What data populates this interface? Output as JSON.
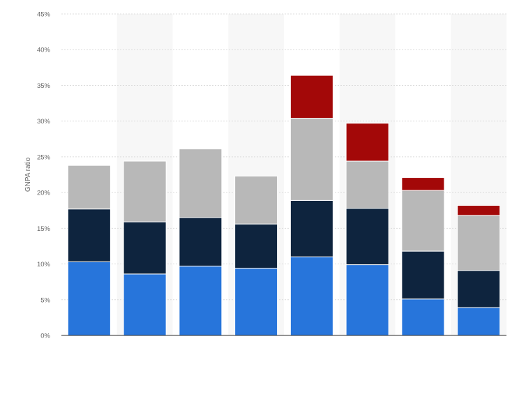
{
  "chart_data": {
    "type": "bar",
    "stacked": true,
    "categories": [
      "",
      "",
      "",
      "",
      "",
      "",
      "",
      ""
    ],
    "series": [
      {
        "values": [
          10.3,
          8.6,
          9.7,
          9.4,
          11.0,
          9.9,
          5.1,
          3.9
        ]
      },
      {
        "values": [
          7.4,
          7.3,
          6.8,
          6.2,
          7.9,
          7.9,
          6.7,
          5.2
        ]
      },
      {
        "values": [
          6.1,
          8.5,
          9.6,
          6.7,
          11.5,
          6.6,
          8.5,
          7.7
        ]
      },
      {
        "values": [
          0,
          0,
          0,
          0,
          6.0,
          5.3,
          1.8,
          1.4
        ]
      }
    ],
    "colors": [
      "#2775db",
      "#0e243e",
      "#b8b8b8",
      "#a30808"
    ],
    "ylabel": "GNPA ratio",
    "ylim": [
      0,
      45
    ],
    "yticks": [
      0,
      5,
      10,
      15,
      20,
      25,
      30,
      35,
      40,
      45
    ],
    "ytick_labels": [
      "0%",
      "5%",
      "10%",
      "15%",
      "20%",
      "25%",
      "30%",
      "35%",
      "40%",
      "45%"
    ],
    "grid": true,
    "grid_style": "dashed",
    "alternating_column_shading": true,
    "legend": "none"
  }
}
